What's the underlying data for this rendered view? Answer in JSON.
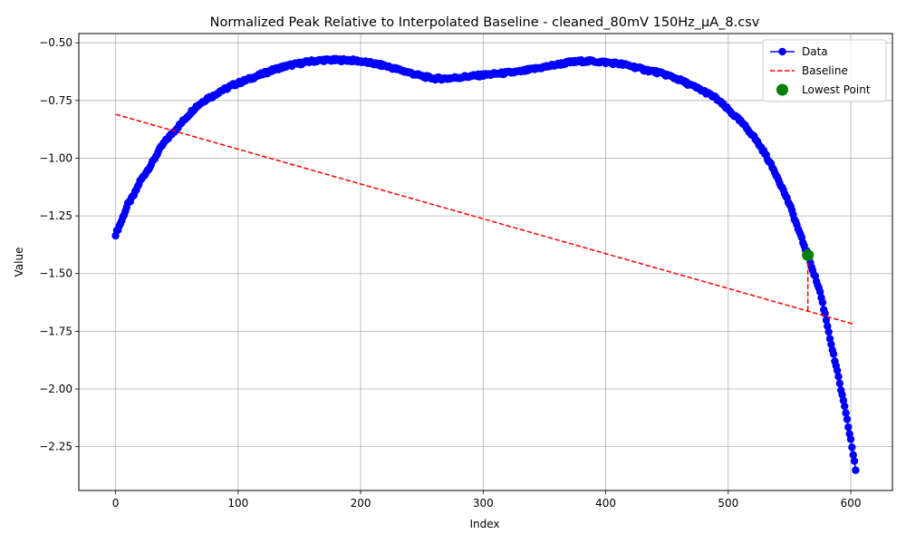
{
  "chart_data": {
    "type": "line",
    "title": "Normalized Peak Relative to Interpolated Baseline - cleaned_80mV 150Hz_µA_8.csv",
    "xlabel": "Index",
    "ylabel": "Value",
    "xlim": [
      -30,
      634
    ],
    "ylim": [
      -2.44,
      -0.46
    ],
    "xticks": [
      0,
      100,
      200,
      300,
      400,
      500,
      600
    ],
    "xtick_labels": [
      "0",
      "100",
      "200",
      "300",
      "400",
      "500",
      "600"
    ],
    "yticks": [
      -0.5,
      -0.75,
      -1.0,
      -1.25,
      -1.5,
      -1.75,
      -2.0,
      -2.25
    ],
    "ytick_labels": [
      "−0.50",
      "−0.75",
      "−1.00",
      "−1.25",
      "−1.50",
      "−1.75",
      "−2.00",
      "−2.25"
    ],
    "grid": true,
    "legend_position": "top-right",
    "series": [
      {
        "name": "Data",
        "color": "#0000ff",
        "marker": "circle",
        "x_start": 0,
        "x_end": 604,
        "keypoints": [
          [
            0,
            -1.33
          ],
          [
            5,
            -1.27
          ],
          [
            10,
            -1.2
          ],
          [
            15,
            -1.16
          ],
          [
            20,
            -1.1
          ],
          [
            25,
            -1.06
          ],
          [
            30,
            -1.02
          ],
          [
            35,
            -0.97
          ],
          [
            40,
            -0.93
          ],
          [
            45,
            -0.9
          ],
          [
            50,
            -0.87
          ],
          [
            55,
            -0.84
          ],
          [
            60,
            -0.81
          ],
          [
            65,
            -0.78
          ],
          [
            70,
            -0.76
          ],
          [
            75,
            -0.74
          ],
          [
            80,
            -0.73
          ],
          [
            85,
            -0.71
          ],
          [
            90,
            -0.7
          ],
          [
            95,
            -0.685
          ],
          [
            100,
            -0.675
          ],
          [
            110,
            -0.655
          ],
          [
            120,
            -0.635
          ],
          [
            130,
            -0.615
          ],
          [
            140,
            -0.6
          ],
          [
            150,
            -0.59
          ],
          [
            160,
            -0.58
          ],
          [
            170,
            -0.575
          ],
          [
            180,
            -0.575
          ],
          [
            190,
            -0.575
          ],
          [
            200,
            -0.58
          ],
          [
            210,
            -0.59
          ],
          [
            220,
            -0.6
          ],
          [
            230,
            -0.615
          ],
          [
            240,
            -0.63
          ],
          [
            250,
            -0.645
          ],
          [
            260,
            -0.655
          ],
          [
            270,
            -0.655
          ],
          [
            280,
            -0.65
          ],
          [
            290,
            -0.645
          ],
          [
            300,
            -0.64
          ],
          [
            310,
            -0.635
          ],
          [
            320,
            -0.63
          ],
          [
            330,
            -0.625
          ],
          [
            340,
            -0.615
          ],
          [
            350,
            -0.605
          ],
          [
            360,
            -0.595
          ],
          [
            370,
            -0.585
          ],
          [
            380,
            -0.58
          ],
          [
            390,
            -0.58
          ],
          [
            400,
            -0.585
          ],
          [
            410,
            -0.59
          ],
          [
            420,
            -0.6
          ],
          [
            430,
            -0.615
          ],
          [
            440,
            -0.625
          ],
          [
            450,
            -0.64
          ],
          [
            460,
            -0.66
          ],
          [
            470,
            -0.685
          ],
          [
            480,
            -0.71
          ],
          [
            490,
            -0.74
          ],
          [
            500,
            -0.79
          ],
          [
            510,
            -0.84
          ],
          [
            520,
            -0.9
          ],
          [
            530,
            -0.98
          ],
          [
            540,
            -1.08
          ],
          [
            550,
            -1.2
          ],
          [
            556,
            -1.29
          ],
          [
            560,
            -1.35
          ],
          [
            565,
            -1.42
          ],
          [
            570,
            -1.5
          ],
          [
            575,
            -1.58
          ],
          [
            580,
            -1.7
          ],
          [
            585,
            -1.83
          ],
          [
            590,
            -1.95
          ],
          [
            595,
            -2.08
          ],
          [
            600,
            -2.22
          ],
          [
            604,
            -2.35
          ]
        ]
      },
      {
        "name": "Baseline",
        "color": "#ff0000",
        "style": "dashed",
        "x": [
          0,
          603
        ],
        "y": [
          -0.81,
          -1.72
        ]
      },
      {
        "name": "Lowest Point",
        "color": "#008000",
        "marker": "circle",
        "x": [
          565
        ],
        "y": [
          -1.42
        ]
      }
    ],
    "connector": {
      "x": 565,
      "y_from": -1.42,
      "y_to": -1.665,
      "color": "#ff0000",
      "style": "dashed"
    }
  }
}
